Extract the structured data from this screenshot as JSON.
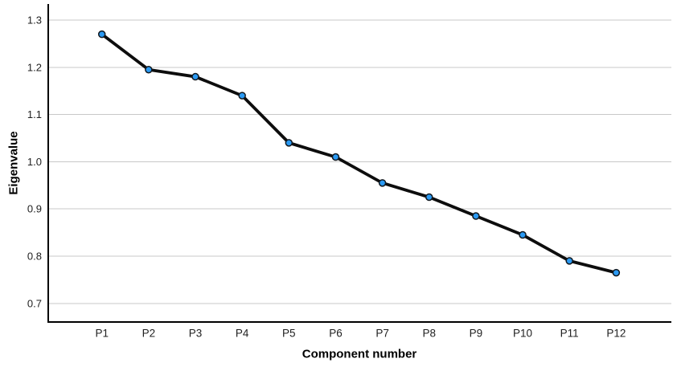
{
  "figure": {
    "background": "#ffffff"
  },
  "chart_data": {
    "type": "line",
    "title": "",
    "xlabel": "Component number",
    "ylabel": "Eigenvalue",
    "categories": [
      "P1",
      "P2",
      "P3",
      "P4",
      "P5",
      "P6",
      "P7",
      "P8",
      "P9",
      "P10",
      "P11",
      "P12"
    ],
    "values": [
      1.27,
      1.195,
      1.18,
      1.14,
      1.04,
      1.01,
      0.955,
      0.925,
      0.885,
      0.845,
      0.79,
      0.765
    ],
    "yticks": [
      "1.3",
      "1.2",
      "1.1",
      "1.0",
      "0.9",
      "0.8",
      "0.7"
    ],
    "ylim": [
      0.66,
      1.335
    ],
    "grid": "horizontal-only",
    "legend": "none",
    "colors": {
      "line": "#0d0d0d",
      "marker_fill": "#2b9af3",
      "marker_stroke": "#11181f",
      "gridline": "#c8c8c8",
      "axis": "#000000",
      "tick_label": "#1f1f1f",
      "axis_title": "#000000",
      "background": "#ffffff"
    }
  }
}
